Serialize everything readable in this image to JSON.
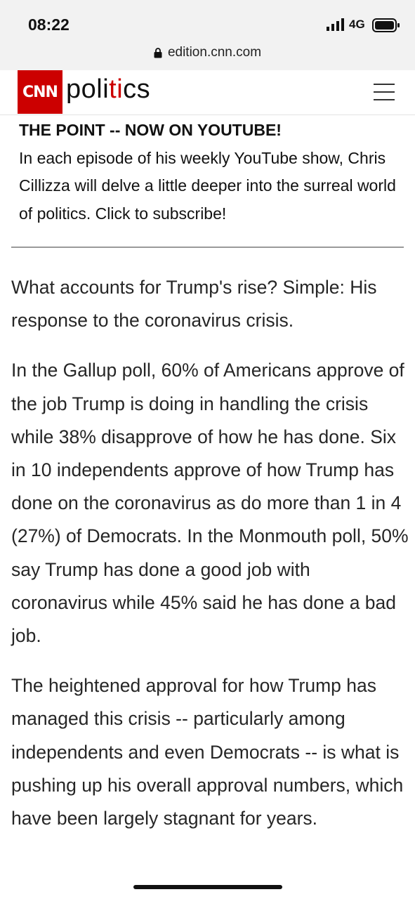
{
  "status_bar": {
    "time": "08:22",
    "network": "4G",
    "icons": [
      "signal-icon",
      "battery-icon"
    ]
  },
  "browser": {
    "url": "edition.cnn.com",
    "icon": "lock-icon"
  },
  "header": {
    "logo_text": "CNN",
    "section_part1": "poli",
    "section_part2": "ti",
    "section_part3": "cs",
    "brand_color": "#cc0000",
    "menu_icon": "hamburger-menu-icon"
  },
  "promo": {
    "title": "THE POINT -- NOW ON YOUTUBE!",
    "body": "In each episode of his weekly YouTube show, Chris Cillizza will delve a little deeper into the surreal world of politics. Click to subscribe!"
  },
  "article": {
    "paragraphs": [
      "What accounts for Trump's rise? Simple: His response to the coronavirus crisis.",
      "In the Gallup poll, 60% of Americans approve of the job Trump is doing in handling the crisis while 38% disapprove of how he has done. Six in 10 independents approve of how Trump has done on the coronavirus as do more than 1 in 4 (27%) of Democrats. In the Monmouth poll, 50% say Trump has done a good job with coronavirus while 45% said he has done a bad job.",
      "The heightened approval for how Trump has managed this crisis -- particularly among independents and even Democrats -- is what is pushing up his overall approval numbers, which have been largely stagnant for years."
    ]
  }
}
